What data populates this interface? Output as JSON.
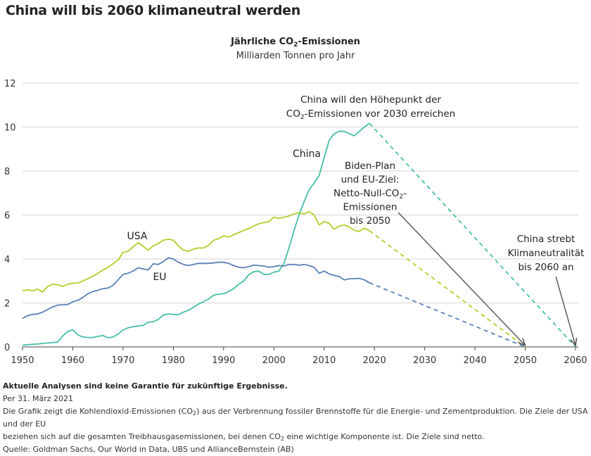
{
  "page_title": "China will bis 2060 klimaneutral werden",
  "chart_data": {
    "type": "line",
    "title": "Jährliche CO₂-Emissionen",
    "subtitle": "Milliarden Tonnen pro Jahr",
    "xlim": [
      1950,
      2060
    ],
    "ylim": [
      0,
      12
    ],
    "xticks": [
      1950,
      1960,
      1970,
      1980,
      1990,
      2000,
      2010,
      2020,
      2030,
      2040,
      2050,
      2060
    ],
    "yticks": [
      0,
      2,
      4,
      6,
      8,
      10,
      12
    ],
    "grid": true,
    "series": [
      {
        "name": "China",
        "label": "China",
        "color": "#45bfa6",
        "x": [
          1950,
          1951,
          1952,
          1953,
          1954,
          1955,
          1956,
          1957,
          1958,
          1959,
          1960,
          1961,
          1962,
          1963,
          1964,
          1965,
          1966,
          1967,
          1968,
          1969,
          1970,
          1971,
          1972,
          1973,
          1974,
          1975,
          1976,
          1977,
          1978,
          1979,
          1980,
          1981,
          1982,
          1983,
          1984,
          1985,
          1986,
          1987,
          1988,
          1989,
          1990,
          1991,
          1992,
          1993,
          1994,
          1995,
          1996,
          1997,
          1998,
          1999,
          2000,
          2001,
          2002,
          2003,
          2004,
          2005,
          2006,
          2007,
          2008,
          2009,
          2010,
          2011,
          2012,
          2013,
          2014,
          2015,
          2016,
          2017,
          2018,
          2019
        ],
        "values": [
          0.08,
          0.1,
          0.12,
          0.13,
          0.16,
          0.18,
          0.2,
          0.22,
          0.5,
          0.7,
          0.78,
          0.55,
          0.45,
          0.43,
          0.43,
          0.48,
          0.52,
          0.42,
          0.45,
          0.58,
          0.77,
          0.87,
          0.92,
          0.95,
          0.98,
          1.12,
          1.15,
          1.25,
          1.45,
          1.5,
          1.48,
          1.47,
          1.58,
          1.67,
          1.8,
          1.95,
          2.05,
          2.18,
          2.35,
          2.4,
          2.42,
          2.52,
          2.65,
          2.85,
          3.0,
          3.28,
          3.42,
          3.45,
          3.3,
          3.3,
          3.4,
          3.45,
          3.8,
          4.5,
          5.3,
          6.0,
          6.6,
          7.15,
          7.45,
          7.8,
          8.6,
          9.4,
          9.7,
          9.8,
          9.8,
          9.7,
          9.6,
          9.8,
          10.0,
          10.17
        ],
        "projection": {
          "x": [
            2019,
            2060
          ],
          "values": [
            10.17,
            0
          ]
        }
      },
      {
        "name": "USA",
        "label": "USA",
        "color": "#b5cd2a",
        "x": [
          1950,
          1951,
          1952,
          1953,
          1954,
          1955,
          1956,
          1957,
          1958,
          1959,
          1960,
          1961,
          1962,
          1963,
          1964,
          1965,
          1966,
          1967,
          1968,
          1969,
          1970,
          1971,
          1972,
          1973,
          1974,
          1975,
          1976,
          1977,
          1978,
          1979,
          1980,
          1981,
          1982,
          1983,
          1984,
          1985,
          1986,
          1987,
          1988,
          1989,
          1990,
          1991,
          1992,
          1993,
          1994,
          1995,
          1996,
          1997,
          1998,
          1999,
          2000,
          2001,
          2002,
          2003,
          2004,
          2005,
          2006,
          2007,
          2008,
          2009,
          2010,
          2011,
          2012,
          2013,
          2014,
          2015,
          2016,
          2017,
          2018,
          2019
        ],
        "values": [
          2.55,
          2.6,
          2.55,
          2.62,
          2.5,
          2.75,
          2.85,
          2.83,
          2.75,
          2.85,
          2.9,
          2.9,
          3.0,
          3.1,
          3.22,
          3.35,
          3.5,
          3.62,
          3.78,
          3.95,
          4.3,
          4.35,
          4.55,
          4.75,
          4.58,
          4.4,
          4.6,
          4.7,
          4.85,
          4.9,
          4.85,
          4.6,
          4.4,
          4.35,
          4.45,
          4.5,
          4.5,
          4.62,
          4.85,
          4.92,
          5.05,
          5.0,
          5.1,
          5.2,
          5.3,
          5.38,
          5.5,
          5.6,
          5.65,
          5.7,
          5.9,
          5.85,
          5.9,
          5.95,
          6.05,
          6.1,
          6.05,
          6.15,
          6.0,
          5.55,
          5.7,
          5.62,
          5.35,
          5.5,
          5.55,
          5.45,
          5.3,
          5.25,
          5.4,
          5.28
        ],
        "projection": {
          "x": [
            2019,
            2050
          ],
          "values": [
            5.28,
            0
          ]
        }
      },
      {
        "name": "EU",
        "label": "EU",
        "color": "#5b7fb5",
        "x": [
          1950,
          1951,
          1952,
          1953,
          1954,
          1955,
          1956,
          1957,
          1958,
          1959,
          1960,
          1961,
          1962,
          1963,
          1964,
          1965,
          1966,
          1967,
          1968,
          1969,
          1970,
          1971,
          1972,
          1973,
          1974,
          1975,
          1976,
          1977,
          1978,
          1979,
          1980,
          1981,
          1982,
          1983,
          1984,
          1985,
          1986,
          1987,
          1988,
          1989,
          1990,
          1991,
          1992,
          1993,
          1994,
          1995,
          1996,
          1997,
          1998,
          1999,
          2000,
          2001,
          2002,
          2003,
          2004,
          2005,
          2006,
          2007,
          2008,
          2009,
          2010,
          2011,
          2012,
          2013,
          2014,
          2015,
          2016,
          2017,
          2018,
          2019
        ],
        "values": [
          1.3,
          1.42,
          1.48,
          1.5,
          1.58,
          1.7,
          1.82,
          1.9,
          1.92,
          1.93,
          2.05,
          2.12,
          2.25,
          2.42,
          2.52,
          2.58,
          2.65,
          2.68,
          2.8,
          3.05,
          3.3,
          3.35,
          3.45,
          3.6,
          3.55,
          3.5,
          3.78,
          3.75,
          3.88,
          4.05,
          4.0,
          3.85,
          3.75,
          3.7,
          3.75,
          3.8,
          3.8,
          3.8,
          3.82,
          3.85,
          3.85,
          3.8,
          3.7,
          3.62,
          3.6,
          3.65,
          3.72,
          3.7,
          3.68,
          3.62,
          3.65,
          3.7,
          3.68,
          3.75,
          3.75,
          3.72,
          3.75,
          3.7,
          3.62,
          3.35,
          3.45,
          3.32,
          3.25,
          3.2,
          3.05,
          3.1,
          3.1,
          3.12,
          3.05,
          2.92
        ],
        "projection": {
          "x": [
            2019,
            2050
          ],
          "values": [
            2.92,
            0
          ]
        }
      }
    ],
    "annotations": [
      {
        "id": "china-peak",
        "lines": [
          "China will den Höhepunkt der",
          "CO₂-Emissionen vor 2030 erreichen"
        ]
      },
      {
        "id": "biden-plan",
        "lines": [
          "Biden-Plan",
          "und EU-Ziel:",
          "Netto-Null-CO₂-",
          "Emissionen",
          "bis 2050"
        ],
        "arrow_to": [
          2050,
          0
        ]
      },
      {
        "id": "china-neutral",
        "lines": [
          "China strebt",
          "Klimaneutralität",
          "bis 2060 an"
        ],
        "arrow_to": [
          2060,
          0
        ]
      }
    ]
  },
  "footer": {
    "disclaimer": "Aktuelle Analysen sind keine Garantie für zukünftige Ergebnisse.",
    "date": "Per 31. März 2021",
    "note_part1": "Die Grafik zeigt die Kohlendioxid-Emissionen (CO",
    "note_part2": ") aus der Verbrennung fossiler Brennstoffe für die Energie- und Zementproduktion. Die Ziele der USA und der EU",
    "note_part3": "beziehen sich auf die gesamten Treibhausgasemissionen, bei denen CO",
    "note_part4": " eine wichtige Komponente ist. Die Ziele sind netto.",
    "sub2": "2",
    "source": "Quelle: Goldman Sachs, Our World in Data, UBS und AllianceBernstein (AB)"
  }
}
